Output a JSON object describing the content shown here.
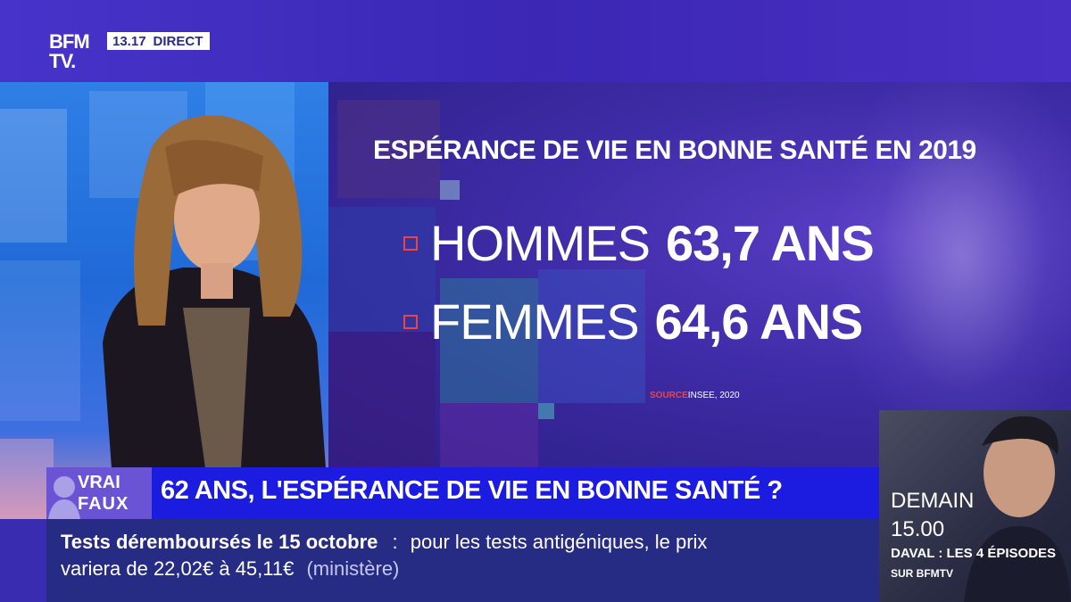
{
  "header": {
    "logo_line1": "BFM",
    "logo_line2": "TV.",
    "time": "13.17",
    "live_label": "DIRECT"
  },
  "graphic": {
    "title": "ESPÉRANCE DE VIE EN BONNE SANTÉ EN 2019",
    "stats": [
      {
        "label": "HOMMES",
        "value": "63,7 ANS"
      },
      {
        "label": "FEMMES",
        "value": "64,6 ANS"
      }
    ],
    "source_key": "SOURCE",
    "source_value": "INSEE, 2020",
    "accent_color": "#e84545"
  },
  "lower_third": {
    "segment_line1": "VRAI",
    "segment_line2": "FAUX",
    "headline": "62 ANS, L'ESPÉRANCE DE VIE EN BONNE SANTÉ ?"
  },
  "ticker": {
    "bold": "Tests déremboursés le 15 octobre",
    "separator": ":",
    "text1": "pour les tests antigéniques, le prix",
    "text2": "variera de 22,02€ à 45,11€",
    "muted": "(ministère)"
  },
  "promo": {
    "when": "DEMAIN",
    "time": "15.00",
    "show": "DAVAL : LES 4 ÉPISODES",
    "channel": "SUR BFMTV"
  },
  "colors": {
    "brand_blue": "#1c1be0",
    "ticker_navy": "#262b84",
    "violet": "#4733c9"
  }
}
